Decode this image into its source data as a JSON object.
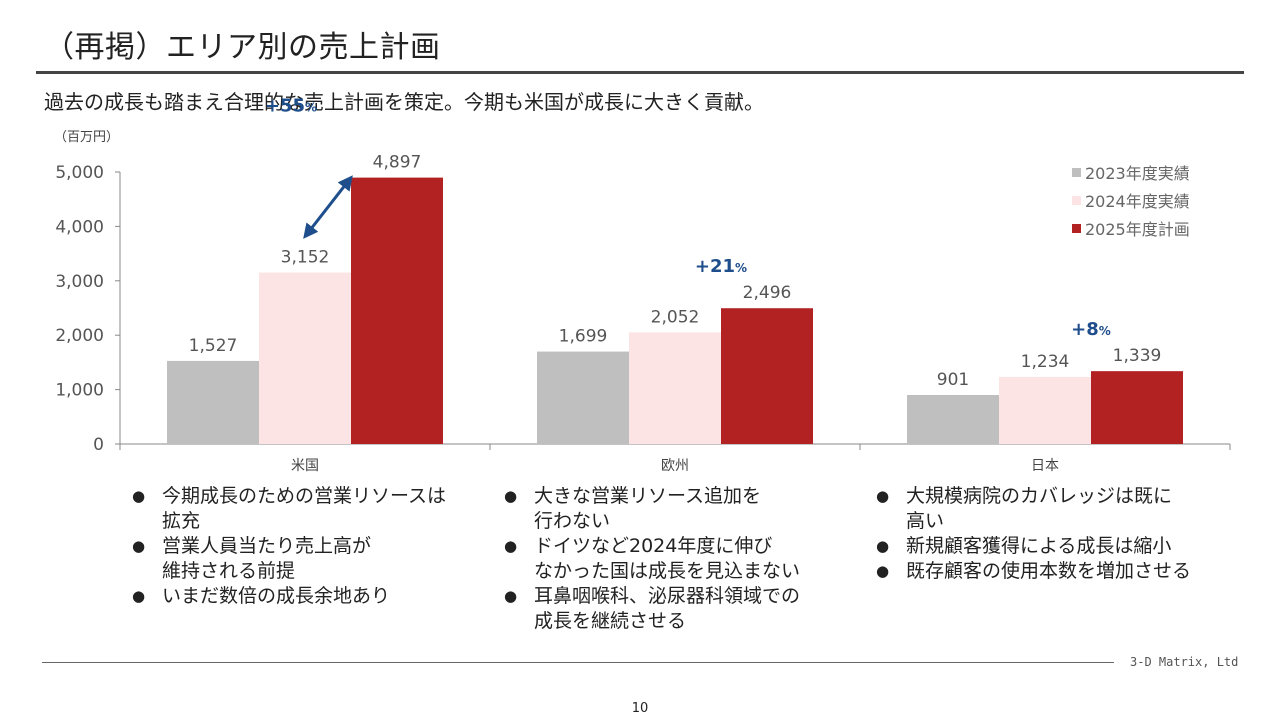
{
  "slide": {
    "title": "（再掲）エリア別の売上計画",
    "subtitle": "過去の成長も踏まえ合理的な売上計画を策定。今期も米国が成長に大きく貢献。",
    "unit_label": "（百万円）",
    "company": "3-D Matrix, Ltd",
    "page_number": "10"
  },
  "chart_data": {
    "type": "bar",
    "categories": [
      "米国",
      "欧州",
      "日本"
    ],
    "series": [
      {
        "name": "2023年度実績",
        "color": "#bfbfbf",
        "values": [
          1527,
          1699,
          901
        ]
      },
      {
        "name": "2024年度実績",
        "color": "#fce4e4",
        "values": [
          3152,
          2052,
          1234
        ]
      },
      {
        "name": "2025年度計画",
        "color": "#b22222",
        "values": [
          4897,
          2496,
          1339
        ]
      }
    ],
    "value_labels": [
      [
        "1,527",
        "1,699",
        "901"
      ],
      [
        "3,152",
        "2,052",
        "1,234"
      ],
      [
        "4,897",
        "2,496",
        "1,339"
      ]
    ],
    "ylim": [
      0,
      5000
    ],
    "yticks": [
      0,
      1000,
      2000,
      3000,
      4000,
      5000
    ],
    "ytick_labels": [
      "0",
      "1,000",
      "2,000",
      "3,000",
      "4,000",
      "5,000"
    ],
    "growth_annotations": [
      {
        "category": "米国",
        "number": "+55",
        "unit": "%",
        "accent": "#1f4e8c"
      },
      {
        "category": "欧州",
        "number": "+21",
        "unit": "%",
        "accent": "#1f4e8c"
      },
      {
        "category": "日本",
        "number": "+8",
        "unit": "%",
        "accent": "#1f4e8c"
      }
    ],
    "legend_position": "top-right",
    "grid": false
  },
  "bullets": [
    {
      "column": "米国",
      "items": [
        "今期成長のための営業リソースは\n拡充",
        "営業人員当たり売上高が\n維持される前提",
        "いまだ数倍の成長余地あり"
      ]
    },
    {
      "column": "欧州",
      "items": [
        "大きな営業リソース追加を\n行わない",
        "ドイツなど2024年度に伸び\nなかった国は成長を見込まない",
        "耳鼻咽喉科、泌尿器科領域での\n成長を継続させる"
      ]
    },
    {
      "column": "日本",
      "items": [
        "大規模病院のカバレッジは既に\n高い",
        "新規顧客獲得による成長は縮小",
        "既存顧客の使用本数を増加させる"
      ]
    }
  ],
  "bullet_symbol": "●"
}
